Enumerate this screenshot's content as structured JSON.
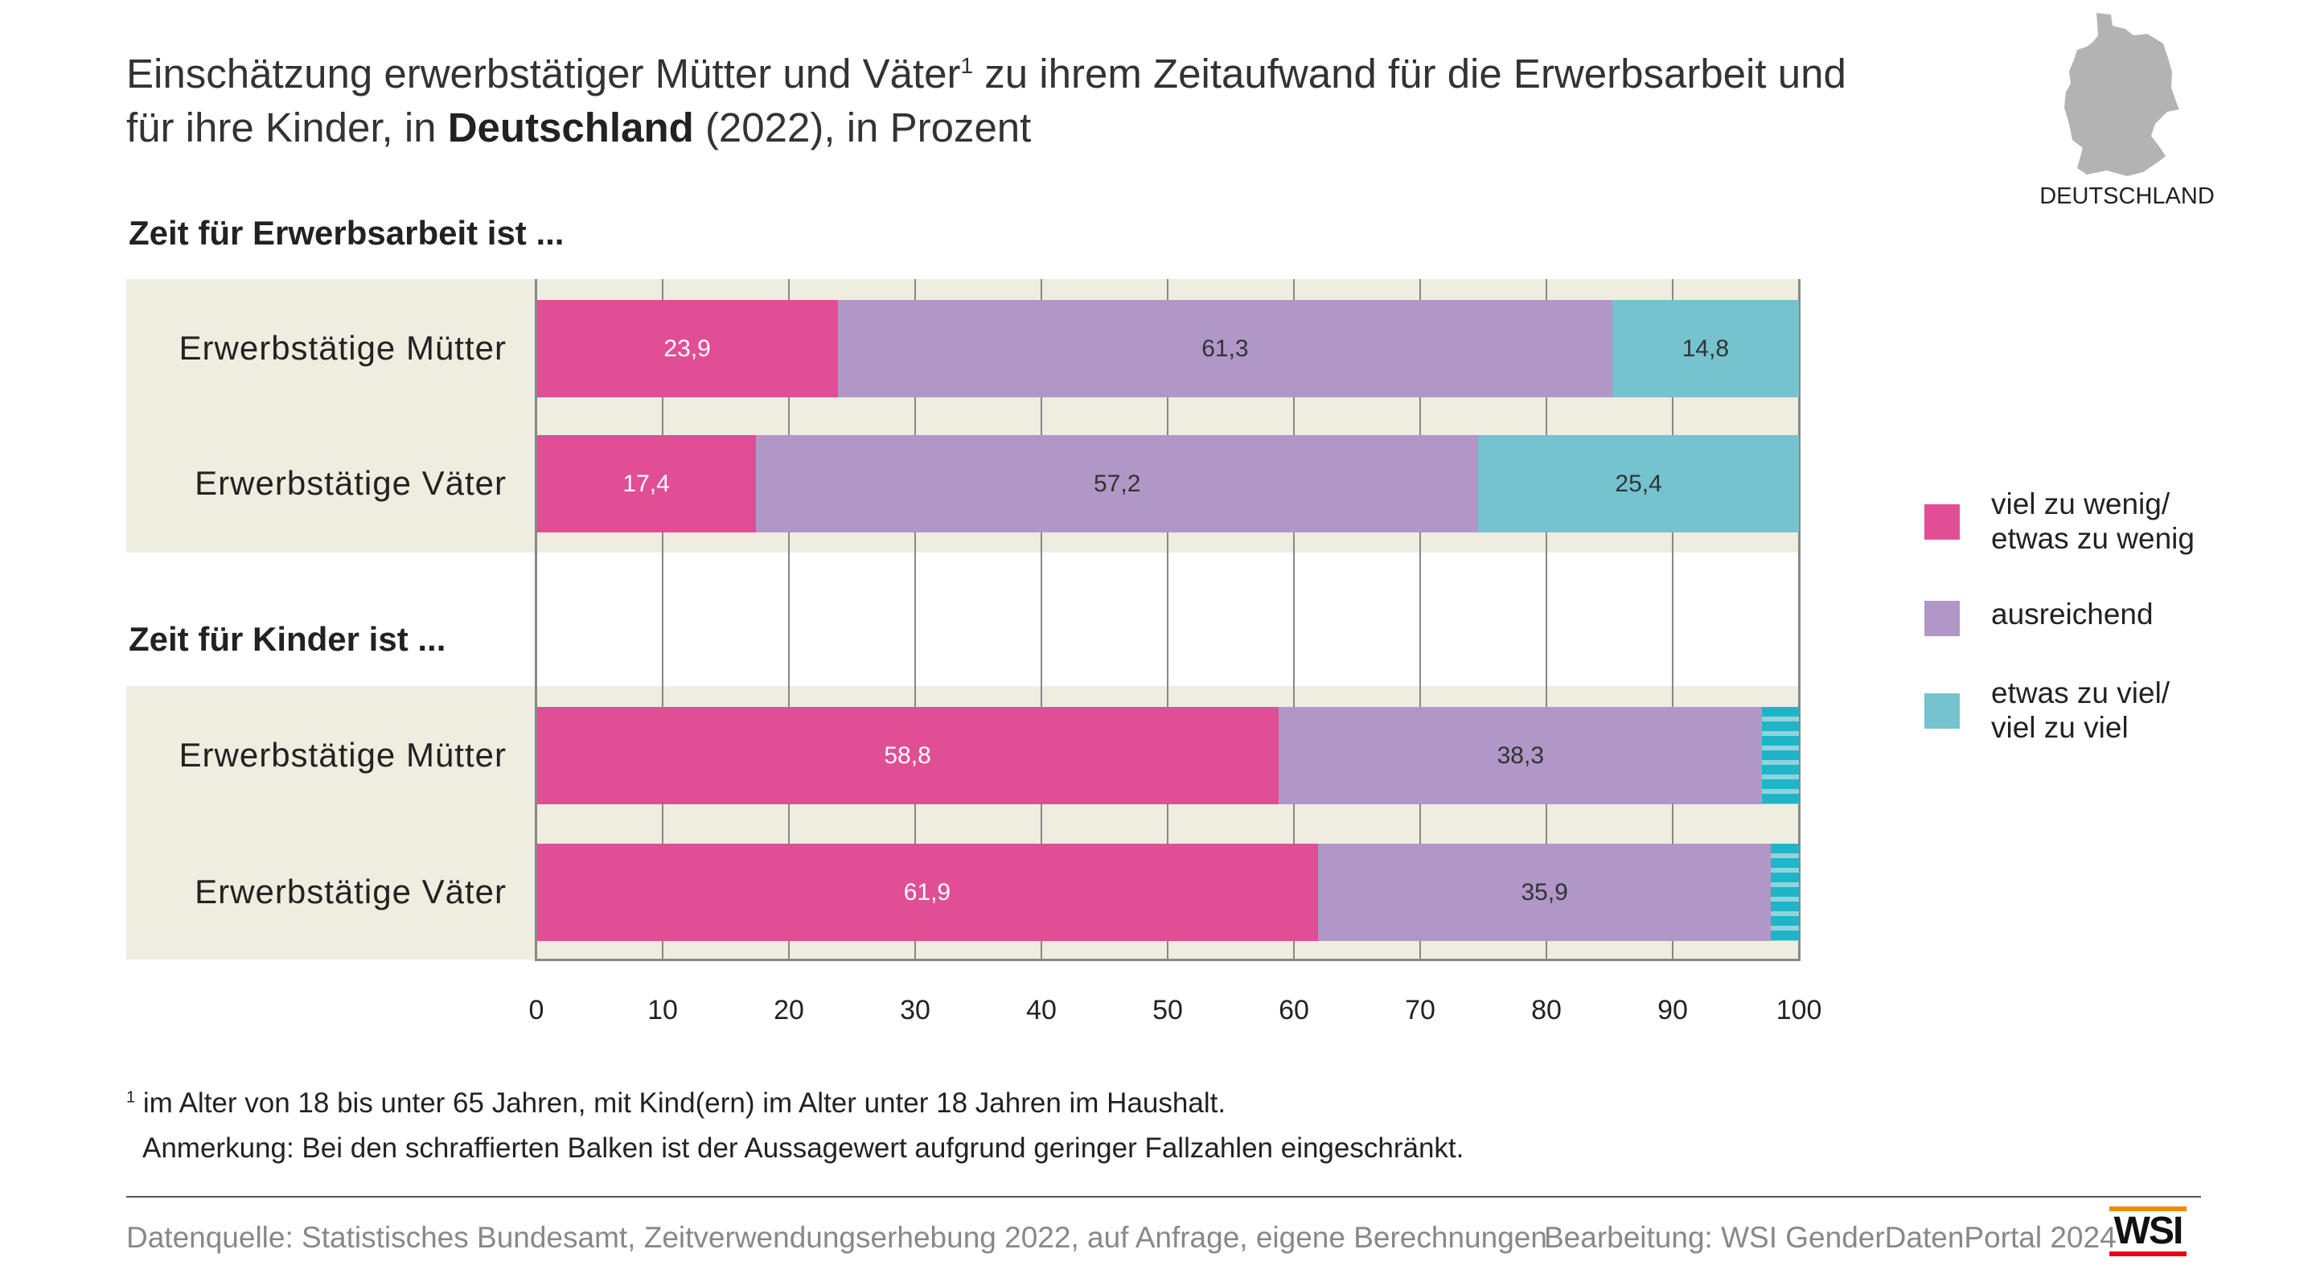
{
  "title": {
    "part1": "Einschätzung erwerbstätiger Mütter und Väter",
    "sup": "1",
    "part2": " zu ihrem Zeitaufwand für die Erwerbsarbeit und",
    "line2_pre": "für ihre Kinder, in ",
    "line2_bold": "Deutschland",
    "line2_post": " (2022), in Prozent"
  },
  "map_label": "DEUTSCHLAND",
  "colors": {
    "pink": "#e04e96",
    "purple": "#b197c7",
    "teal": "#74c3cf",
    "hatched": "#1fb5c8",
    "beige": "#efece0"
  },
  "chart_data": {
    "type": "bar",
    "orientation": "horizontal-stacked",
    "xlim": [
      0,
      100
    ],
    "xticks": [
      "0",
      "10",
      "20",
      "30",
      "40",
      "50",
      "60",
      "70",
      "80",
      "90",
      "100"
    ],
    "legend": [
      "viel zu wenig/ etwas zu wenig",
      "ausreichend",
      "etwas zu viel/ viel zu viel"
    ],
    "legend_lines": [
      [
        "viel zu wenig/",
        "etwas zu wenig"
      ],
      [
        "ausreichend"
      ],
      [
        "etwas zu viel/",
        "viel zu viel"
      ]
    ],
    "groups": [
      {
        "title": "Zeit für Erwerbsarbeit ist ...",
        "rows": [
          {
            "label": "Erwerbstätige Mütter",
            "values": [
              23.9,
              61.3,
              14.8
            ],
            "labels": [
              "23,9",
              "61,3",
              "14,8"
            ],
            "hatched": [
              false,
              false,
              false
            ]
          },
          {
            "label": "Erwerbstätige Väter",
            "values": [
              17.4,
              57.2,
              25.4
            ],
            "labels": [
              "17,4",
              "57,2",
              "25,4"
            ],
            "hatched": [
              false,
              false,
              false
            ]
          }
        ]
      },
      {
        "title": "Zeit für Kinder ist ...",
        "rows": [
          {
            "label": "Erwerbstätige Mütter",
            "values": [
              58.8,
              38.3,
              2.9
            ],
            "labels": [
              "58,8",
              "38,3",
              ""
            ],
            "hatched": [
              false,
              false,
              true
            ]
          },
          {
            "label": "Erwerbstätige Väter",
            "values": [
              61.9,
              35.9,
              2.2
            ],
            "labels": [
              "61,9",
              "35,9",
              ""
            ],
            "hatched": [
              false,
              false,
              true
            ]
          }
        ]
      }
    ]
  },
  "footnotes": {
    "sup": "1",
    "note1": "im Alter von 18 bis unter 65 Jahren, mit Kind(ern) im Alter unter 18 Jahren im Haushalt.",
    "note2": "Anmerkung: Bei den schraffierten Balken ist der Aussagewert aufgrund geringer Fallzahlen eingeschränkt."
  },
  "source": "Datenquelle: Statistisches Bundesamt, Zeitverwendungserhebung 2022, auf Anfrage, eigene Berechnungen",
  "credit": "Bearbeitung: WSI GenderDatenPortal 2024",
  "logo": "WSI"
}
